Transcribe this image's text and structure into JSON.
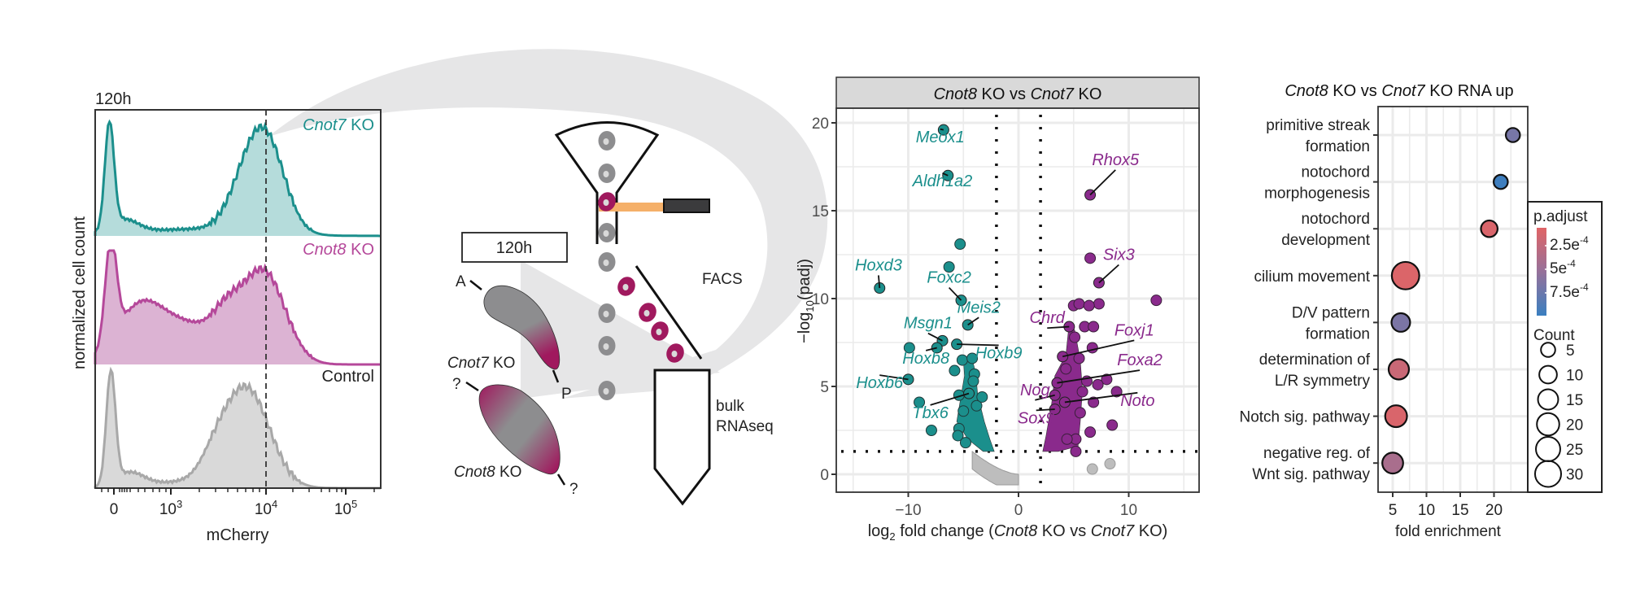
{
  "colors": {
    "teal": "#1b8f8c",
    "teal_fill": "#b5dcdb",
    "magenta": "#b5489a",
    "magenta_fill": "#dcb3d3",
    "gray_line": "#a8a8a8",
    "gray_fill": "#d9d9d9",
    "cell_magenta": "#a0195e",
    "cell_gray": "#8d8d8f",
    "laser": "#f5b069",
    "up": "#8a2a8c",
    "down": "#1b8f8c",
    "ns": "#bdbdbd",
    "padj_low": "#e06466",
    "padj_high": "#3a7fc0"
  },
  "histogram": {
    "time_label": "120h",
    "ylabel": "normalized cell count",
    "xlabel": "mCherry",
    "xticks": [
      {
        "label": "0",
        "sup": ""
      },
      {
        "label": "10",
        "sup": "3"
      },
      {
        "label": "10",
        "sup": "4"
      },
      {
        "label": "10",
        "sup": "5"
      }
    ],
    "tracks": [
      {
        "gene": "Cnot7",
        "suffix": " KO"
      },
      {
        "gene": "Cnot8",
        "suffix": " KO"
      },
      {
        "gene": "",
        "suffix": "Control"
      }
    ]
  },
  "schematic": {
    "time_box": "120h",
    "label_A": "A",
    "label_P": "P",
    "label_q1": "?",
    "label_q2": "?",
    "embryo1_gene": "Cnot7",
    "embryo1_suffix": " KO",
    "embryo2_gene": "Cnot8",
    "embryo2_suffix": " KO",
    "facs": "FACS",
    "bulk_line1": "bulk",
    "bulk_line2": "RNAseq"
  },
  "chart_data": [
    {
      "type": "scatter",
      "title": "Cnot8 KO vs Cnot7 KO",
      "strip_title_parts": [
        {
          "text": "Cnot8",
          "italic": true
        },
        {
          "text": " KO vs ",
          "italic": false
        },
        {
          "text": "Cnot7",
          "italic": true
        },
        {
          "text": " KO",
          "italic": false
        }
      ],
      "xlabel": "log2 fold change (Cnot8 KO vs Cnot7 KO)",
      "ylabel": "-log10(padj)",
      "xlim": [
        -16.5,
        16.5
      ],
      "ylim": [
        -1.6,
        21
      ],
      "xticks": [
        -10,
        0,
        10
      ],
      "yticks": [
        0,
        5,
        10,
        15,
        20
      ],
      "grid": true,
      "thresholds": {
        "log2fc": [
          -2,
          2
        ],
        "neg_log10_padj": 1.3
      },
      "labeled_genes": [
        {
          "gene": "Meox1",
          "x": -6.8,
          "y": 19.6,
          "group": "down",
          "lx": -7.1,
          "ly": 18.9
        },
        {
          "gene": "Aldh1a2",
          "x": -6.4,
          "y": 17.0,
          "group": "down",
          "lx": -6.9,
          "ly": 16.4
        },
        {
          "gene": "Hoxd3",
          "x": -12.6,
          "y": 10.6,
          "group": "down",
          "lx": -12.7,
          "ly": 11.6
        },
        {
          "gene": "Foxc2",
          "x": -5.2,
          "y": 9.9,
          "group": "down",
          "lx": -6.3,
          "ly": 10.9
        },
        {
          "gene": "Meis2",
          "x": -4.6,
          "y": 8.5,
          "group": "down",
          "lx": -3.6,
          "ly": 9.2
        },
        {
          "gene": "Msgn1",
          "x": -6.9,
          "y": 7.6,
          "group": "down",
          "lx": -8.2,
          "ly": 8.3
        },
        {
          "gene": "Hoxb8",
          "x": -7.4,
          "y": 7.2,
          "group": "down",
          "lx": -8.4,
          "ly": 6.3
        },
        {
          "gene": "Hoxb9",
          "x": -5.6,
          "y": 7.4,
          "group": "down",
          "lx": -1.8,
          "ly": 6.6
        },
        {
          "gene": "Hoxb6",
          "x": -10.0,
          "y": 5.4,
          "group": "down",
          "lx": -12.6,
          "ly": 4.9
        },
        {
          "gene": "Tbx6",
          "x": -4.5,
          "y": 4.6,
          "group": "down",
          "lx": -8.0,
          "ly": 3.2
        },
        {
          "gene": "Rhox5",
          "x": 6.5,
          "y": 15.9,
          "group": "up",
          "lx": 8.8,
          "ly": 17.6
        },
        {
          "gene": "Six3",
          "x": 7.3,
          "y": 10.9,
          "group": "up",
          "lx": 9.1,
          "ly": 12.2
        },
        {
          "gene": "Chrd",
          "x": 4.6,
          "y": 8.4,
          "group": "up",
          "lx": 2.6,
          "ly": 8.6
        },
        {
          "gene": "Foxj1",
          "x": 4.0,
          "y": 6.7,
          "group": "up",
          "lx": 10.5,
          "ly": 7.9
        },
        {
          "gene": "Foxa2",
          "x": 3.5,
          "y": 5.2,
          "group": "up",
          "lx": 11.0,
          "ly": 6.2
        },
        {
          "gene": "Nog",
          "x": 3.3,
          "y": 4.5,
          "group": "up",
          "lx": 1.5,
          "ly": 4.5
        },
        {
          "gene": "Noto",
          "x": 4.2,
          "y": 4.1,
          "group": "up",
          "lx": 10.8,
          "ly": 3.9
        },
        {
          "gene": "Sox9",
          "x": 3.3,
          "y": 3.7,
          "group": "up",
          "lx": 1.6,
          "ly": 2.9
        }
      ],
      "other_points_down": [
        {
          "x": -5.3,
          "y": 13.1
        },
        {
          "x": -6.3,
          "y": 11.8
        },
        {
          "x": -9.9,
          "y": 7.2
        },
        {
          "x": -9.0,
          "y": 4.1
        },
        {
          "x": -7.9,
          "y": 2.5
        },
        {
          "x": -5.1,
          "y": 6.5
        },
        {
          "x": -5.8,
          "y": 5.9
        },
        {
          "x": -4.2,
          "y": 6.6
        },
        {
          "x": -4.0,
          "y": 5.7
        },
        {
          "x": -4.1,
          "y": 5.3
        },
        {
          "x": -5.4,
          "y": 4.5
        },
        {
          "x": -5.0,
          "y": 3.6
        },
        {
          "x": -3.8,
          "y": 3.9
        },
        {
          "x": -5.4,
          "y": 2.6
        },
        {
          "x": -5.5,
          "y": 2.2
        },
        {
          "x": -3.3,
          "y": 4.4
        },
        {
          "x": -4.8,
          "y": 1.8
        }
      ],
      "other_points_up": [
        {
          "x": 6.5,
          "y": 12.3
        },
        {
          "x": 12.5,
          "y": 9.9
        },
        {
          "x": 7.3,
          "y": 9.7
        },
        {
          "x": 5.0,
          "y": 9.6
        },
        {
          "x": 5.5,
          "y": 9.7
        },
        {
          "x": 6.4,
          "y": 9.6
        },
        {
          "x": 6.0,
          "y": 8.4
        },
        {
          "x": 6.8,
          "y": 8.4
        },
        {
          "x": 5.1,
          "y": 7.8
        },
        {
          "x": 6.7,
          "y": 7.2
        },
        {
          "x": 5.5,
          "y": 6.6
        },
        {
          "x": 4.3,
          "y": 6.0
        },
        {
          "x": 8.0,
          "y": 5.4
        },
        {
          "x": 7.2,
          "y": 5.1
        },
        {
          "x": 6.2,
          "y": 5.3
        },
        {
          "x": 5.8,
          "y": 4.7
        },
        {
          "x": 6.8,
          "y": 4.1
        },
        {
          "x": 8.9,
          "y": 4.7
        },
        {
          "x": 8.5,
          "y": 2.8
        },
        {
          "x": 6.5,
          "y": 2.4
        },
        {
          "x": 5.2,
          "y": 2.0
        },
        {
          "x": 5.2,
          "y": 1.3
        },
        {
          "x": 4.4,
          "y": 2.0
        },
        {
          "x": 5.6,
          "y": 3.5
        }
      ],
      "ns_outliers": [
        {
          "x": 6.7,
          "y": 0.3
        },
        {
          "x": 8.3,
          "y": 0.6
        }
      ],
      "legend": "none"
    },
    {
      "type": "scatter",
      "subtype": "dotplot",
      "title": "Cnot8 KO vs Cnot7 KO RNA up",
      "title_parts": [
        {
          "text": "Cnot8",
          "italic": true
        },
        {
          "text": " KO vs ",
          "italic": false
        },
        {
          "text": "Cnot7",
          "italic": true
        },
        {
          "text": " KO RNA up",
          "italic": false
        }
      ],
      "xlabel": "fold enrichment",
      "xlim": [
        2.8,
        25
      ],
      "xticks": [
        5,
        10,
        15,
        20
      ],
      "grid": true,
      "categories": [
        {
          "line1": "primitive streak",
          "line2": "formation"
        },
        {
          "line1": "notochord",
          "line2": "morphogenesis"
        },
        {
          "line1": "notochord",
          "line2": "development"
        },
        {
          "line1": "cilium movement",
          "line2": ""
        },
        {
          "line1": "D/V pattern",
          "line2": "formation"
        },
        {
          "line1": "determination of",
          "line2": "L/R symmetry"
        },
        {
          "line1": "Notch sig. pathway",
          "line2": ""
        },
        {
          "line1": "negative reg. of",
          "line2": "Wnt sig. pathway"
        }
      ],
      "points": [
        {
          "fold_enrichment": 22.8,
          "count": 4,
          "padj": 0.00062
        },
        {
          "fold_enrichment": 21.0,
          "count": 4,
          "padj": 0.0009
        },
        {
          "fold_enrichment": 19.3,
          "count": 7,
          "padj": 5e-05
        },
        {
          "fold_enrichment": 6.9,
          "count": 30,
          "padj": 4e-05
        },
        {
          "fold_enrichment": 6.2,
          "count": 10,
          "padj": 0.0006
        },
        {
          "fold_enrichment": 5.9,
          "count": 13,
          "padj": 0.00015
        },
        {
          "fold_enrichment": 5.5,
          "count": 16,
          "padj": 5e-05
        },
        {
          "fold_enrichment": 5.0,
          "count": 14,
          "padj": 0.00035
        }
      ],
      "legend": {
        "placement": "right",
        "color_title": "p.adjust",
        "color_ticks": [
          {
            "mant": "2.5e",
            "exp": "-4"
          },
          {
            "mant": "5e",
            "exp": "-4"
          },
          {
            "mant": "7.5e",
            "exp": "-4"
          }
        ],
        "color_range": [
          1e-05,
          0.00092
        ],
        "size_title": "Count",
        "size_values": [
          5,
          10,
          15,
          20,
          25,
          30
        ]
      }
    }
  ]
}
